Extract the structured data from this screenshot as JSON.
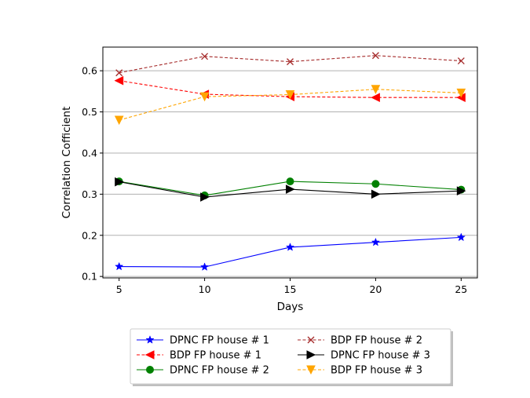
{
  "chart_data": {
    "type": "line",
    "title": "",
    "xlabel": "Days",
    "ylabel": "Correlation Cofficient",
    "x": [
      5,
      10,
      15,
      20,
      25
    ],
    "xlim": [
      4.05,
      25.95
    ],
    "ylim": [
      0.0965,
      0.6575
    ],
    "xticks": [
      5,
      10,
      15,
      20,
      25
    ],
    "yticks": [
      0.1,
      0.2,
      0.3,
      0.4,
      0.5,
      0.6
    ],
    "ytick_labels": [
      "0.1",
      "0.2",
      "0.3",
      "0.4",
      "0.5",
      "0.6"
    ],
    "grid": "horizontal",
    "legend_placement": "below plot, two columns",
    "series": [
      {
        "name": "DPNC FP house # 1",
        "color": "#0000ff",
        "dash": "solid",
        "marker": "star",
        "values": [
          0.124,
          0.123,
          0.171,
          0.183,
          0.195
        ]
      },
      {
        "name": "BDP FP house # 1",
        "color": "#ff0000",
        "dash": "dashed",
        "marker": "triangle-left",
        "values": [
          0.576,
          0.543,
          0.537,
          0.535,
          0.535
        ]
      },
      {
        "name": "DPNC FP house # 2",
        "color": "#008000",
        "dash": "solid",
        "marker": "circle",
        "values": [
          0.331,
          0.297,
          0.331,
          0.325,
          0.311
        ]
      },
      {
        "name": "BDP FP house # 2",
        "color": "#a52a2a",
        "dash": "dashed",
        "marker": "x",
        "values": [
          0.595,
          0.635,
          0.622,
          0.637,
          0.624
        ]
      },
      {
        "name": "DPNC FP house # 3",
        "color": "#000000",
        "dash": "solid",
        "marker": "triangle-right",
        "values": [
          0.33,
          0.293,
          0.312,
          0.3,
          0.308
        ]
      },
      {
        "name": "BDP FP house # 3",
        "color": "#ffa500",
        "dash": "dashed",
        "marker": "triangle-down",
        "values": [
          0.48,
          0.537,
          0.542,
          0.555,
          0.546
        ]
      }
    ]
  }
}
